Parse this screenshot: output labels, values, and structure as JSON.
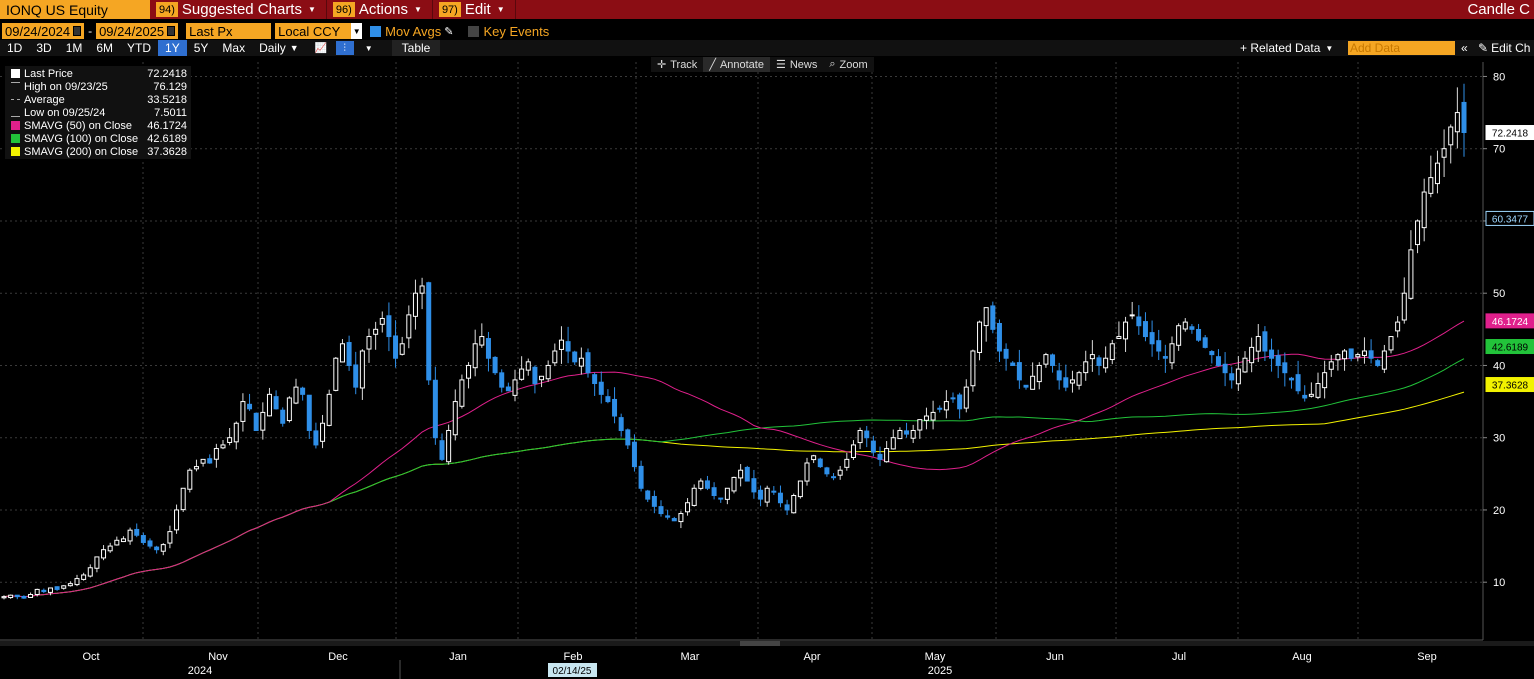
{
  "header": {
    "ticker": "IONQ US Equity",
    "menus": [
      {
        "num": "94)",
        "label": "Suggested Charts"
      },
      {
        "num": "96)",
        "label": "Actions"
      },
      {
        "num": "97)",
        "label": "Edit"
      }
    ],
    "right_title": "Candle C"
  },
  "controls": {
    "start_date": "09/24/2024",
    "end_date": "09/24/2025",
    "field": "Last Px",
    "currency": "Local CCY",
    "mov_avgs_label": "Mov Avgs",
    "key_events_label": "Key Events",
    "periods": [
      "1D",
      "3D",
      "1M",
      "6M",
      "YTD",
      "1Y",
      "5Y",
      "Max"
    ],
    "active_period": "1Y",
    "frequency": "Daily",
    "table_label": "Table",
    "related_data": "+ Related Data",
    "add_data_placeholder": "Add Data",
    "edit_chart": "Edit Ch"
  },
  "annotate_bar": [
    "Track",
    "Annotate",
    "News",
    "Zoom"
  ],
  "legend": [
    {
      "label": "Last Price",
      "value": "72.2418",
      "color": "#ffffff"
    },
    {
      "label": "High on 09/23/25",
      "value": "76.129",
      "color": ""
    },
    {
      "label": "Average",
      "value": "33.5218",
      "color": ""
    },
    {
      "label": "Low on 09/25/24",
      "value": "7.5011",
      "color": ""
    },
    {
      "label": "SMAVG (50)  on Close",
      "value": "46.1724",
      "color": "#e0208c"
    },
    {
      "label": "SMAVG (100)  on Close",
      "value": "42.6189",
      "color": "#22c33a"
    },
    {
      "label": "SMAVG (200)  on Close",
      "value": "37.3628",
      "color": "#f2f200"
    }
  ],
  "chart_data": {
    "type": "candlestick",
    "y_ticks": [
      10,
      20,
      30,
      40,
      50,
      60,
      70,
      80
    ],
    "ylim": [
      2,
      82
    ],
    "month_labels": [
      "Oct",
      "Nov",
      "Dec",
      "Jan",
      "Feb",
      "Mar",
      "Apr",
      "May",
      "Jun",
      "Jul",
      "Aug",
      "Sep"
    ],
    "year_labels": [
      "2024",
      "2025"
    ],
    "highlight_date": "02/14/25",
    "price_tags": [
      {
        "value": "72.2418",
        "color": "#ffffff",
        "y": 72.24
      },
      {
        "value": "60.3477",
        "color": "#000000",
        "y": 60.35
      },
      {
        "value": "46.1724",
        "color": "#e0208c",
        "y": 46.17
      },
      {
        "value": "42.6189",
        "color": "#22c33a",
        "y": 42.62
      },
      {
        "value": "37.3628",
        "color": "#f2f200",
        "y": 37.36
      }
    ],
    "close_series": [
      8.0,
      8.2,
      8.0,
      7.8,
      8.3,
      9.0,
      8.7,
      9.2,
      9.0,
      9.5,
      9.8,
      10.5,
      11.0,
      12.0,
      13.5,
      14.5,
      15.0,
      15.8,
      16.0,
      17.2,
      16.5,
      15.5,
      15.0,
      14.5,
      15.2,
      17.0,
      20.0,
      23.0,
      25.5,
      26.0,
      27.0,
      26.5,
      28.5,
      29.0,
      30.0,
      32.0,
      35.0,
      34.0,
      31.0,
      33.5,
      36.0,
      34.0,
      32.0,
      35.5,
      37.0,
      36.0,
      31.0,
      29.0,
      32.0,
      36.0,
      41.0,
      43.0,
      40.0,
      37.0,
      42.0,
      44.0,
      45.0,
      46.5,
      44.0,
      41.0,
      43.0,
      47.0,
      50.0,
      51.0,
      38.0,
      30.0,
      27.0,
      31.0,
      35.0,
      38.0,
      40.0,
      43.0,
      44.0,
      41.0,
      39.0,
      37.0,
      36.5,
      38.0,
      39.5,
      40.5,
      37.5,
      38.5,
      40.0,
      42.0,
      43.5,
      42.0,
      40.5,
      41.0,
      39.0,
      37.5,
      36.0,
      35.0,
      33.0,
      31.0,
      29.0,
      26.0,
      23.0,
      21.5,
      20.5,
      19.5,
      19.0,
      18.5,
      19.5,
      21.0,
      23.0,
      24.0,
      23.0,
      22.0,
      21.5,
      23.0,
      24.5,
      25.5,
      24.0,
      22.5,
      21.5,
      23.0,
      22.5,
      21.0,
      20.0,
      22.0,
      24.0,
      26.5,
      27.5,
      26.0,
      25.0,
      24.5,
      25.5,
      27.0,
      29.0,
      31.0,
      30.0,
      28.0,
      27.0,
      28.5,
      30.0,
      31.0,
      30.5,
      31.0,
      32.5,
      33.0,
      33.5,
      34.0,
      35.0,
      35.5,
      34.0,
      37.0,
      42.0,
      46.0,
      48.0,
      45.0,
      42.0,
      41.0,
      40.0,
      38.0,
      37.0,
      38.5,
      40.0,
      41.5,
      40.0,
      38.0,
      37.0,
      38.0,
      39.0,
      40.5,
      41.5,
      40.0,
      41.0,
      43.0,
      44.0,
      46.0,
      47.0,
      45.5,
      44.0,
      43.0,
      42.0,
      41.0,
      43.0,
      45.5,
      46.0,
      45.0,
      43.5,
      42.5,
      41.5,
      40.0,
      39.0,
      38.0,
      39.5,
      41.0,
      42.5,
      44.0,
      42.0,
      41.0,
      40.0,
      39.0,
      38.0,
      36.5,
      35.5,
      36.0,
      37.5,
      39.0,
      40.5,
      41.5,
      42.0,
      41.0,
      41.5,
      42.0,
      41.0,
      40.0,
      42.0,
      44.0,
      46.0,
      50.0,
      56.0,
      60.0,
      64.0,
      66.0,
      68.0,
      70.0,
      73.0,
      75.0,
      72.2418
    ]
  }
}
